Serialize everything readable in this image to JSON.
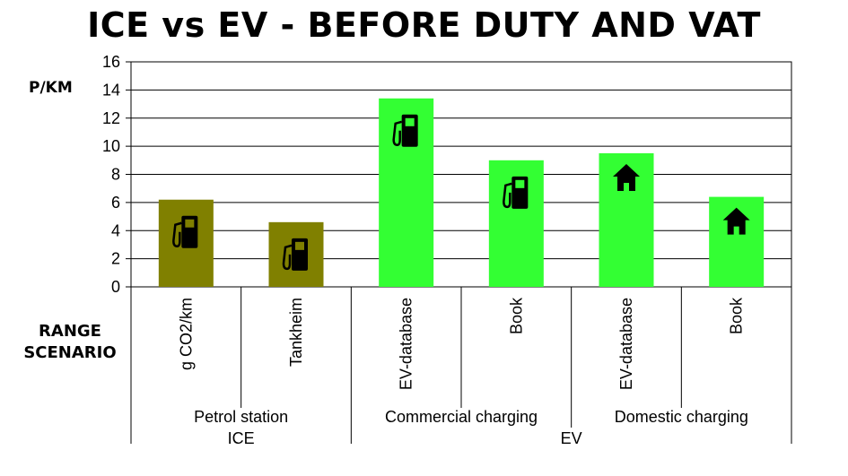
{
  "chart_data": {
    "type": "bar",
    "title": "ICE vs EV - BEFORE DUTY AND VAT",
    "ylabel": "P/KM",
    "xlabel": "RANGE SCENARIO",
    "ylim": [
      0,
      16
    ],
    "yticks": [
      0,
      2,
      4,
      6,
      8,
      10,
      12,
      14,
      16
    ],
    "grid": true,
    "categories": [
      "g CO2/km",
      "Tankheim",
      "EV-database",
      "Book",
      "EV-database",
      "Book"
    ],
    "values": [
      6.2,
      4.6,
      13.4,
      9.0,
      9.5,
      6.4
    ],
    "bar_colors": [
      "#808000",
      "#808000",
      "#33ff33",
      "#33ff33",
      "#33ff33",
      "#33ff33"
    ],
    "bar_icons": [
      "fuel-pump-icon",
      "fuel-pump-icon",
      "fuel-pump-icon",
      "fuel-pump-icon",
      "house-icon",
      "house-icon"
    ],
    "groups_level2": [
      {
        "label": "Petrol station",
        "span": [
          0,
          1
        ]
      },
      {
        "label": "Commercial charging",
        "span": [
          2,
          3
        ]
      },
      {
        "label": "Domestic charging",
        "span": [
          4,
          5
        ]
      }
    ],
    "groups_level1": [
      {
        "label": "ICE",
        "span": [
          0,
          1
        ]
      },
      {
        "label": "EV",
        "span": [
          2,
          5
        ]
      }
    ]
  }
}
